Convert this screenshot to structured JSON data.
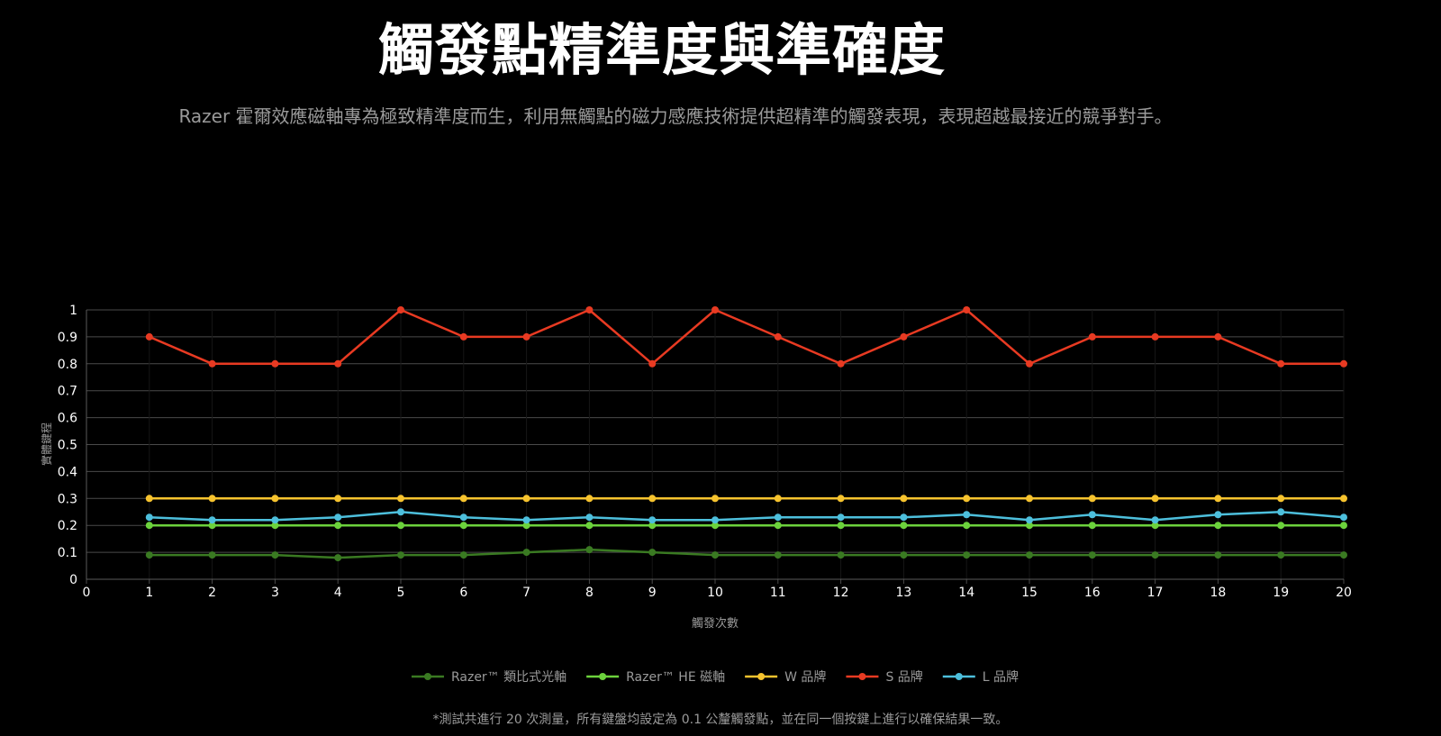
{
  "header": {
    "title": "觸發點精準度與準確度",
    "subtitle": "Razer 霍爾效應磁軸專為極致精準度而生，利用無觸點的磁力感應技術提供超精準的觸發表現，表現超越最接近的競爭對手。"
  },
  "footnote": "*測試共進行 20 次測量，所有鍵盤均設定為 0.1 公釐觸發點，並在同一個按鍵上進行以確保結果一致。",
  "colors": {
    "background": "#000000",
    "grid": "#4a4a4a",
    "axis_text": "#ffffff",
    "muted_text": "#9a9a9a"
  },
  "chart_data": {
    "type": "line",
    "xlabel": "觸發次數",
    "ylabel": "實體鍵程",
    "xlim": [
      0,
      20
    ],
    "ylim": [
      0,
      1
    ],
    "x_ticks": [
      "0",
      "1",
      "2",
      "3",
      "4",
      "5",
      "6",
      "7",
      "8",
      "9",
      "10",
      "11",
      "12",
      "13",
      "14",
      "15",
      "16",
      "17",
      "18",
      "19",
      "20"
    ],
    "y_ticks": [
      "0",
      "0.1",
      "0.2",
      "0.3",
      "0.4",
      "0.5",
      "0.6",
      "0.7",
      "0.8",
      "0.9",
      "1"
    ],
    "grid": true,
    "legend_position": "bottom",
    "x": [
      1,
      2,
      3,
      4,
      5,
      6,
      7,
      8,
      9,
      10,
      11,
      12,
      13,
      14,
      15,
      16,
      17,
      18,
      19,
      20
    ],
    "series": [
      {
        "name": "Razer™ 類比式光軸",
        "color": "#3a7a22",
        "values": [
          0.09,
          0.09,
          0.09,
          0.08,
          0.09,
          0.09,
          0.1,
          0.11,
          0.1,
          0.09,
          0.09,
          0.09,
          0.09,
          0.09,
          0.09,
          0.09,
          0.09,
          0.09,
          0.09,
          0.09
        ]
      },
      {
        "name": "Razer™ HE 磁軸",
        "color": "#6cd23c",
        "values": [
          0.2,
          0.2,
          0.2,
          0.2,
          0.2,
          0.2,
          0.2,
          0.2,
          0.2,
          0.2,
          0.2,
          0.2,
          0.2,
          0.2,
          0.2,
          0.2,
          0.2,
          0.2,
          0.2,
          0.2
        ]
      },
      {
        "name": "W 品牌",
        "color": "#f6c32e",
        "values": [
          0.3,
          0.3,
          0.3,
          0.3,
          0.3,
          0.3,
          0.3,
          0.3,
          0.3,
          0.3,
          0.3,
          0.3,
          0.3,
          0.3,
          0.3,
          0.3,
          0.3,
          0.3,
          0.3,
          0.3
        ]
      },
      {
        "name": "S 品牌",
        "color": "#e83a22",
        "values": [
          0.9,
          0.8,
          0.8,
          0.8,
          1.0,
          0.9,
          0.9,
          1.0,
          0.8,
          1.0,
          0.9,
          0.8,
          0.9,
          1.0,
          0.8,
          0.9,
          0.9,
          0.9,
          0.8,
          0.8
        ]
      },
      {
        "name": "L 品牌",
        "color": "#4dbfdc",
        "values": [
          0.23,
          0.22,
          0.22,
          0.23,
          0.25,
          0.23,
          0.22,
          0.23,
          0.22,
          0.22,
          0.23,
          0.23,
          0.23,
          0.24,
          0.22,
          0.24,
          0.22,
          0.24,
          0.25,
          0.23
        ]
      }
    ]
  }
}
